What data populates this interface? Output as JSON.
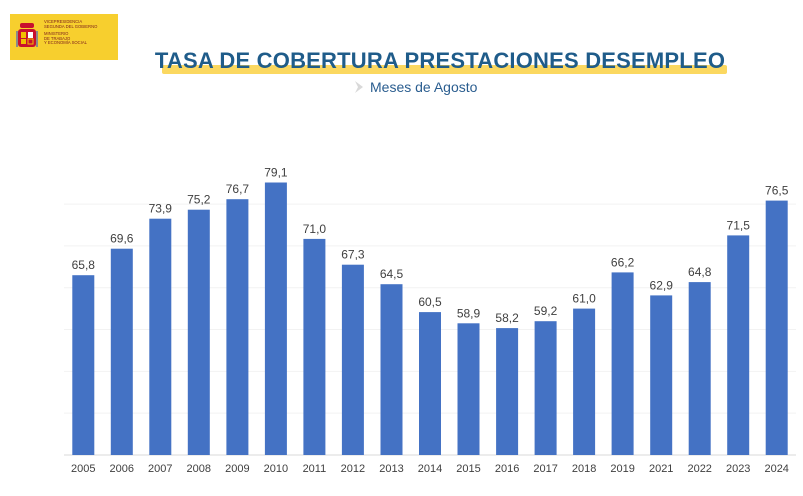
{
  "logo": {
    "lines_top": [
      "VICEPRESIDENCIA",
      "SEGUNDA DEL GOBIERNO"
    ],
    "lines_bottom": [
      "MINISTERIO",
      "DE TRABAJO",
      "Y ECONOMÍA SOCIAL"
    ],
    "color": "#f7cf2e",
    "icon": "spain-coat-of-arms-icon"
  },
  "header": {
    "title": "TASA DE COBERTURA PRESTACIONES DESEMPLEO",
    "subtitle": "Meses de Agosto"
  },
  "colors": {
    "bar": "#4472c4",
    "title": "#1f5c8a",
    "highlight": "#fbd860",
    "label": "#404040"
  },
  "chart_data": {
    "type": "bar",
    "title": "TASA DE COBERTURA PRESTACIONES DESEMPLEO",
    "subtitle": "Meses de Agosto",
    "xlabel": "",
    "ylabel": "",
    "categories": [
      "2005",
      "2006",
      "2007",
      "2008",
      "2009",
      "2010",
      "2011",
      "2012",
      "2013",
      "2014",
      "2015",
      "2016",
      "2017",
      "2018",
      "2019",
      "2021",
      "2022",
      "2023",
      "2024"
    ],
    "values": [
      65.8,
      69.6,
      73.9,
      75.2,
      76.7,
      79.1,
      71.0,
      67.3,
      64.5,
      60.5,
      58.9,
      58.2,
      59.2,
      61.0,
      66.2,
      62.9,
      64.8,
      71.5,
      76.5
    ],
    "value_labels": [
      "65,8",
      "69,6",
      "73,9",
      "75,2",
      "76,7",
      "79,1",
      "71,0",
      "67,3",
      "64,5",
      "60,5",
      "58,9",
      "58,2",
      "59,2",
      "61,0",
      "66,2",
      "62,9",
      "64,8",
      "71,5",
      "76,5"
    ],
    "ylim": [
      40,
      80
    ],
    "grid": true,
    "legend": "none"
  }
}
